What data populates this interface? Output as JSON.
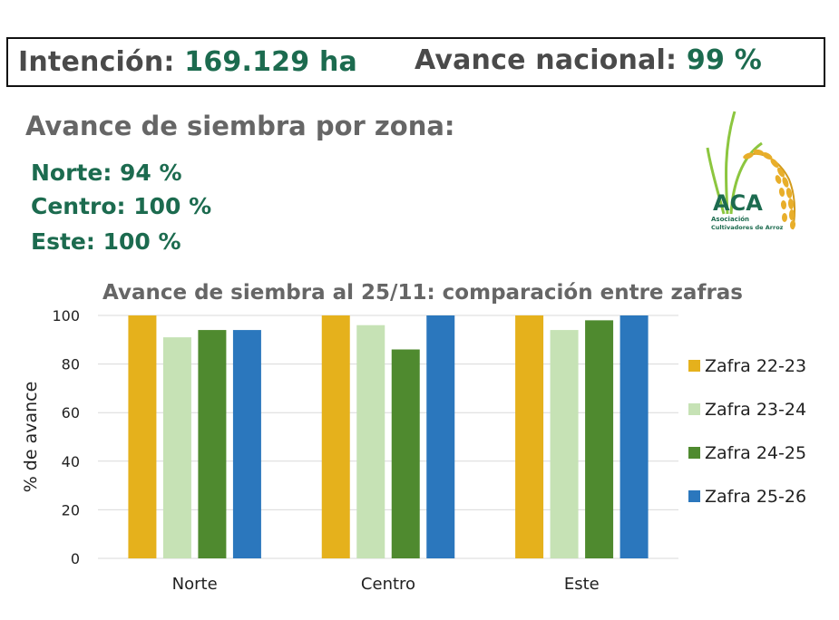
{
  "header": {
    "intencion_label": "Intención:",
    "intencion_value": "169.129 ha",
    "avance_label": "Avance nacional:",
    "avance_value": "99 %"
  },
  "subtitle": "Avance de siembra por zona:",
  "zones": [
    {
      "text": "Norte: 94 %"
    },
    {
      "text": "Centro: 100 %"
    },
    {
      "text": "Este: 100 %"
    }
  ],
  "logo": {
    "acronym": "ACA",
    "line1": "Asociación",
    "line2": "Cultivadores de Arroz"
  },
  "chart_data": {
    "type": "bar",
    "title": "Avance de siembra al 25/11: comparación entre zafras",
    "xlabel": "",
    "ylabel": "% de avance",
    "ylim": [
      0,
      100
    ],
    "yticks": [
      0,
      20,
      40,
      60,
      80,
      100
    ],
    "categories": [
      "Norte",
      "Centro",
      "Este"
    ],
    "grid": true,
    "legend_position": "right",
    "series": [
      {
        "name": "Zafra 22-23",
        "color": "#e5b11c",
        "values": [
          100,
          100,
          100
        ]
      },
      {
        "name": "Zafra 23-24",
        "color": "#c6e2b5",
        "values": [
          91,
          96,
          94
        ]
      },
      {
        "name": "Zafra 24-25",
        "color": "#4f8a2f",
        "values": [
          94,
          86,
          98
        ]
      },
      {
        "name": "Zafra 25-26",
        "color": "#2b77bd",
        "values": [
          94,
          100,
          100
        ]
      }
    ]
  }
}
